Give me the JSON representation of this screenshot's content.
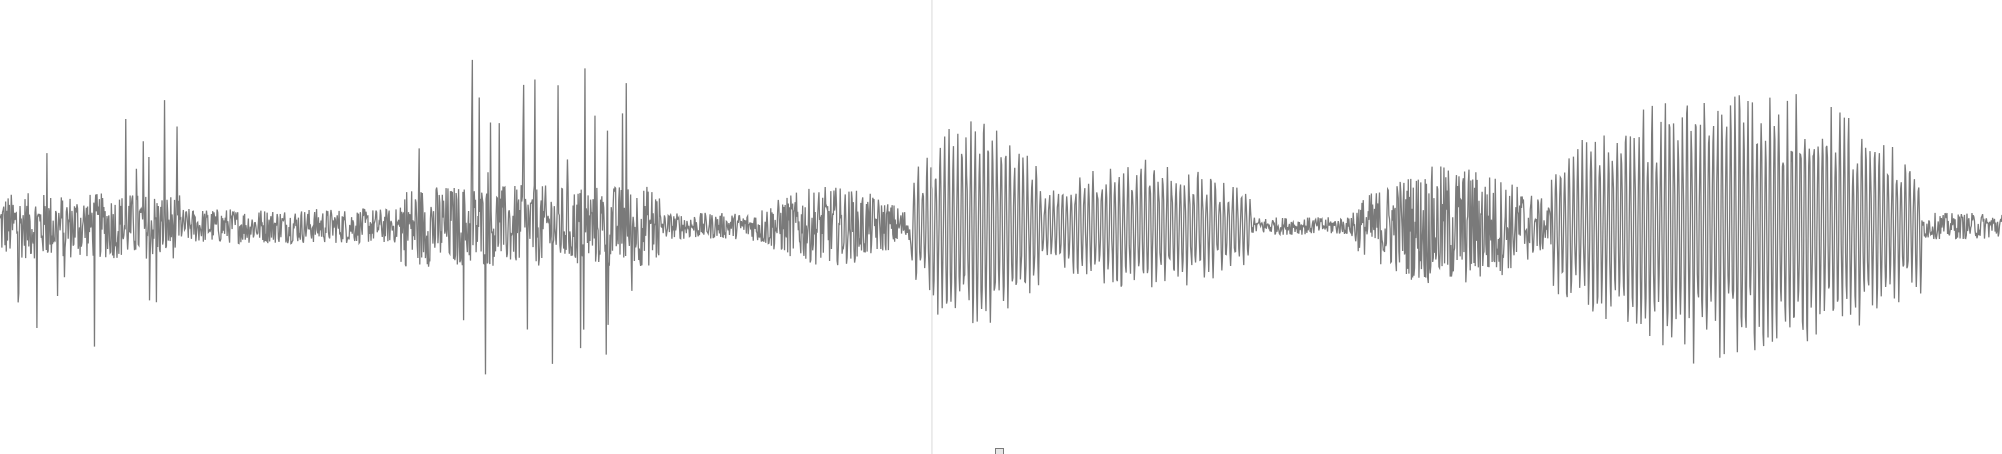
{
  "waveform": {
    "colors": {
      "background": "#ffffff",
      "wave": "#7a7a7a",
      "playhead": "#d9d9d9"
    },
    "playhead_time_fraction": 0.4655,
    "segments": [
      {
        "start": 0.0,
        "end": 0.09,
        "amplitude": 0.5,
        "texture": "spiky"
      },
      {
        "start": 0.09,
        "end": 0.2,
        "amplitude": 0.08,
        "texture": "noise"
      },
      {
        "start": 0.2,
        "end": 0.33,
        "amplitude": 0.62,
        "texture": "spiky"
      },
      {
        "start": 0.33,
        "end": 0.375,
        "amplitude": 0.06,
        "texture": "noise"
      },
      {
        "start": 0.375,
        "end": 0.455,
        "amplitude": 0.18,
        "texture": "burst"
      },
      {
        "start": 0.455,
        "end": 0.52,
        "amplitude": 0.52,
        "texture": "tonal"
      },
      {
        "start": 0.52,
        "end": 0.625,
        "amplitude": 0.32,
        "texture": "tonal"
      },
      {
        "start": 0.625,
        "end": 0.675,
        "amplitude": 0.04,
        "texture": "noise"
      },
      {
        "start": 0.675,
        "end": 0.775,
        "amplitude": 0.28,
        "texture": "burst"
      },
      {
        "start": 0.775,
        "end": 0.96,
        "amplitude": 0.65,
        "texture": "tonal"
      },
      {
        "start": 0.96,
        "end": 1.0,
        "amplitude": 0.06,
        "texture": "noise"
      }
    ]
  }
}
